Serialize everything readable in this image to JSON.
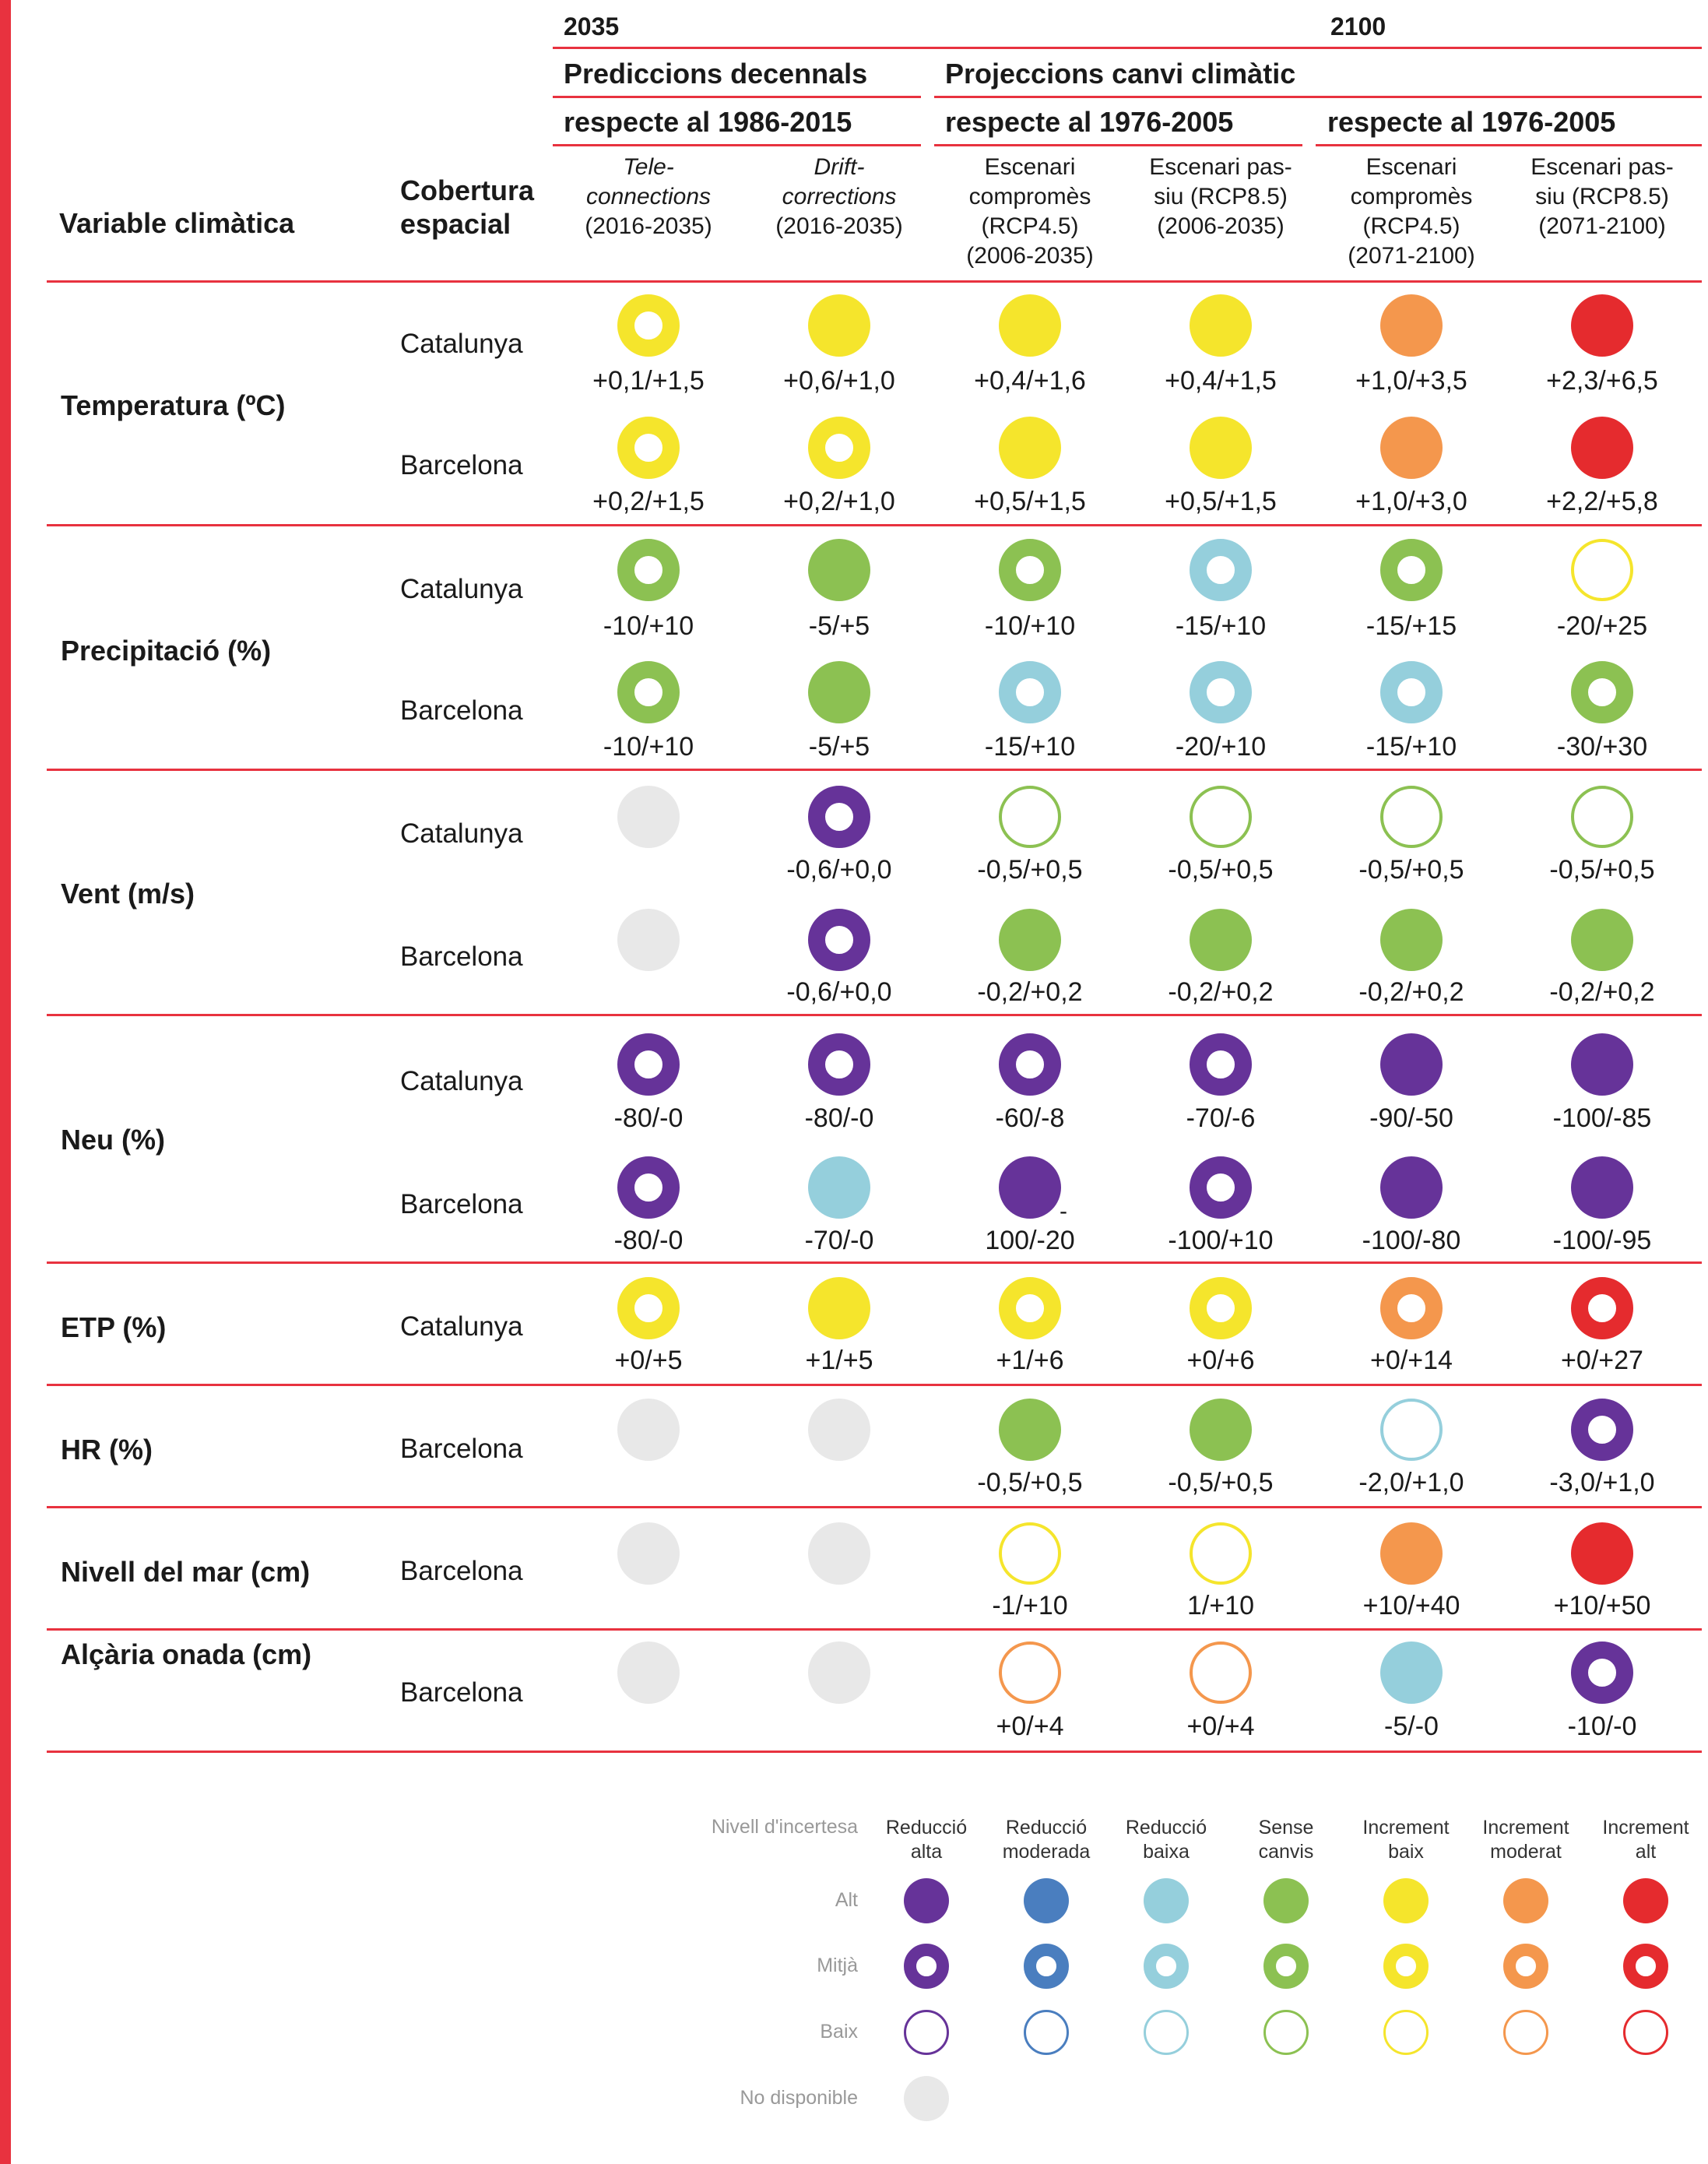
{
  "colors": {
    "accent": "#e8323f",
    "reduccio_alta": "#663399",
    "reduccio_moderada": "#4a7ebf",
    "reduccio_baixa": "#95cfdc",
    "sense_canvis": "#8cc152",
    "increment_baix": "#f5e52c",
    "increment_moderat": "#f4974d",
    "increment_alt": "#e52b2e",
    "no_disponible": "#e8e8e8"
  },
  "header": {
    "year_2035": "2035",
    "year_2100": "2100",
    "group_predictions": "Prediccions decennals",
    "group_projections": "Projeccions canvi climàtic",
    "ref_1986": "respecte al 1986-2015",
    "ref_1976_a": "respecte al 1976-2005",
    "ref_1976_b": "respecte al 1976-2005",
    "var_label": "Variable climàtica",
    "cob_label_1": "Cobertura",
    "cob_label_2": "espacial",
    "columns": [
      {
        "l1": "Tele-",
        "l2": "connections",
        "l3": "(2016-2035)",
        "l4": "",
        "italic": true
      },
      {
        "l1": "Drift-",
        "l2": "corrections",
        "l3": "(2016-2035)",
        "l4": "",
        "italic": true
      },
      {
        "l1": "Escenari",
        "l2": "compromès",
        "l3": "(RCP4.5)",
        "l4": "(2006-2035)",
        "italic": false
      },
      {
        "l1": "Escenari pas-",
        "l2": "siu (RCP8.5)",
        "l3": "(2006-2035)",
        "l4": "",
        "italic": false
      },
      {
        "l1": "Escenari",
        "l2": "compromès",
        "l3": "(RCP4.5)",
        "l4": "(2071-2100)",
        "italic": false
      },
      {
        "l1": "Escenari pas-",
        "l2": "siu (RCP8.5)",
        "l3": "(2071-2100)",
        "l4": "",
        "italic": false
      }
    ]
  },
  "groups": [
    {
      "name": "Temperatura (ºC)",
      "rows": [
        {
          "region": "Catalunya",
          "cells": [
            {
              "c": "Y",
              "l": "M",
              "v": "+0,1/+1,5"
            },
            {
              "c": "Y",
              "l": "A",
              "v": "+0,6/+1,0"
            },
            {
              "c": "Y",
              "l": "A",
              "v": "+0,4/+1,6"
            },
            {
              "c": "Y",
              "l": "A",
              "v": "+0,4/+1,5"
            },
            {
              "c": "O",
              "l": "A",
              "v": "+1,0/+3,5"
            },
            {
              "c": "R",
              "l": "A",
              "v": "+2,3/+6,5"
            }
          ]
        },
        {
          "region": "Barcelona",
          "cells": [
            {
              "c": "Y",
              "l": "M",
              "v": "+0,2/+1,5"
            },
            {
              "c": "Y",
              "l": "M",
              "v": "+0,2/+1,0"
            },
            {
              "c": "Y",
              "l": "A",
              "v": "+0,5/+1,5"
            },
            {
              "c": "Y",
              "l": "A",
              "v": "+0,5/+1,5"
            },
            {
              "c": "O",
              "l": "A",
              "v": "+1,0/+3,0"
            },
            {
              "c": "R",
              "l": "A",
              "v": "+2,2/+5,8"
            }
          ]
        }
      ]
    },
    {
      "name": "Precipitació (%)",
      "rows": [
        {
          "region": "Catalunya",
          "cells": [
            {
              "c": "G",
              "l": "M",
              "v": "-10/+10"
            },
            {
              "c": "G",
              "l": "A",
              "v": "-5/+5"
            },
            {
              "c": "G",
              "l": "M",
              "v": "-10/+10"
            },
            {
              "c": "C",
              "l": "M",
              "v": "-15/+10"
            },
            {
              "c": "G",
              "l": "M",
              "v": "-15/+15"
            },
            {
              "c": "Y",
              "l": "B",
              "v": "-20/+25"
            }
          ]
        },
        {
          "region": "Barcelona",
          "cells": [
            {
              "c": "G",
              "l": "M",
              "v": "-10/+10"
            },
            {
              "c": "G",
              "l": "A",
              "v": "-5/+5"
            },
            {
              "c": "C",
              "l": "M",
              "v": "-15/+10"
            },
            {
              "c": "C",
              "l": "M",
              "v": "-20/+10"
            },
            {
              "c": "C",
              "l": "M",
              "v": "-15/+10"
            },
            {
              "c": "G",
              "l": "M",
              "v": "-30/+30"
            }
          ]
        }
      ]
    },
    {
      "name": "Vent (m/s)",
      "rows": [
        {
          "region": "Catalunya",
          "cells": [
            {
              "c": "N",
              "l": "A",
              "v": ""
            },
            {
              "c": "P",
              "l": "M",
              "v": "-0,6/+0,0"
            },
            {
              "c": "G",
              "l": "B",
              "v": "-0,5/+0,5"
            },
            {
              "c": "G",
              "l": "B",
              "v": "-0,5/+0,5"
            },
            {
              "c": "G",
              "l": "B",
              "v": "-0,5/+0,5"
            },
            {
              "c": "G",
              "l": "B",
              "v": "-0,5/+0,5"
            }
          ]
        },
        {
          "region": "Barcelona",
          "cells": [
            {
              "c": "N",
              "l": "A",
              "v": ""
            },
            {
              "c": "P",
              "l": "M",
              "v": "-0,6/+0,0"
            },
            {
              "c": "G",
              "l": "A",
              "v": "-0,2/+0,2"
            },
            {
              "c": "G",
              "l": "A",
              "v": "-0,2/+0,2"
            },
            {
              "c": "G",
              "l": "A",
              "v": "-0,2/+0,2"
            },
            {
              "c": "G",
              "l": "A",
              "v": "-0,2/+0,2"
            }
          ]
        }
      ]
    },
    {
      "name": "Neu (%)",
      "rows": [
        {
          "region": "Catalunya",
          "cells": [
            {
              "c": "P",
              "l": "M",
              "v": "-80/-0"
            },
            {
              "c": "P",
              "l": "M",
              "v": "-80/-0"
            },
            {
              "c": "P",
              "l": "M",
              "v": "-60/-8"
            },
            {
              "c": "P",
              "l": "M",
              "v": "-70/-6"
            },
            {
              "c": "P",
              "l": "A",
              "v": "-90/-50"
            },
            {
              "c": "P",
              "l": "A",
              "v": "-100/-85"
            }
          ]
        },
        {
          "region": "Barcelona",
          "cells": [
            {
              "c": "P",
              "l": "M",
              "v": "-80/-0"
            },
            {
              "c": "C",
              "l": "A",
              "v": "-70/-0"
            },
            {
              "c": "P",
              "l": "A",
              "v": "100/-20",
              "hyphen": "-"
            },
            {
              "c": "P",
              "l": "M",
              "v": "-100/+10"
            },
            {
              "c": "P",
              "l": "A",
              "v": "-100/-80"
            },
            {
              "c": "P",
              "l": "A",
              "v": "-100/-95"
            }
          ]
        }
      ]
    },
    {
      "name": "ETP (%)",
      "rows": [
        {
          "region": "Catalunya",
          "cells": [
            {
              "c": "Y",
              "l": "M",
              "v": "+0/+5"
            },
            {
              "c": "Y",
              "l": "A",
              "v": "+1/+5"
            },
            {
              "c": "Y",
              "l": "M",
              "v": "+1/+6"
            },
            {
              "c": "Y",
              "l": "M",
              "v": "+0/+6"
            },
            {
              "c": "O",
              "l": "M",
              "v": "+0/+14"
            },
            {
              "c": "R",
              "l": "M",
              "v": "+0/+27"
            }
          ]
        }
      ]
    },
    {
      "name": "HR (%)",
      "rows": [
        {
          "region": "Barcelona",
          "cells": [
            {
              "c": "N",
              "l": "A",
              "v": ""
            },
            {
              "c": "N",
              "l": "A",
              "v": ""
            },
            {
              "c": "G",
              "l": "A",
              "v": "-0,5/+0,5"
            },
            {
              "c": "G",
              "l": "A",
              "v": "-0,5/+0,5"
            },
            {
              "c": "C",
              "l": "B",
              "v": "-2,0/+1,0"
            },
            {
              "c": "P",
              "l": "M",
              "v": "-3,0/+1,0"
            }
          ]
        }
      ]
    },
    {
      "name": "Nivell del mar (cm)",
      "rows": [
        {
          "region": "Barcelona",
          "cells": [
            {
              "c": "N",
              "l": "A",
              "v": ""
            },
            {
              "c": "N",
              "l": "A",
              "v": ""
            },
            {
              "c": "Y",
              "l": "B",
              "v": "-1/+10"
            },
            {
              "c": "Y",
              "l": "B",
              "v": "1/+10"
            },
            {
              "c": "O",
              "l": "A",
              "v": "+10/+40"
            },
            {
              "c": "R",
              "l": "A",
              "v": "+10/+50"
            }
          ]
        }
      ]
    },
    {
      "name": "Alçària onada (cm)",
      "rows": [
        {
          "region": "Barcelona",
          "cells": [
            {
              "c": "N",
              "l": "A",
              "v": ""
            },
            {
              "c": "N",
              "l": "A",
              "v": ""
            },
            {
              "c": "O",
              "l": "B",
              "v": "+0/+4"
            },
            {
              "c": "O",
              "l": "B",
              "v": "+0/+4"
            },
            {
              "c": "C",
              "l": "A",
              "v": "-5/-0"
            },
            {
              "c": "P",
              "l": "M",
              "v": "-10/-0"
            }
          ]
        }
      ]
    }
  ],
  "legend": {
    "title": "Nivell d'incertesa",
    "categories": [
      {
        "l1": "Reducció",
        "l2": "alta",
        "c": "P"
      },
      {
        "l1": "Reducció",
        "l2": "moderada",
        "c": "B"
      },
      {
        "l1": "Reducció",
        "l2": "baixa",
        "c": "C"
      },
      {
        "l1": "Sense",
        "l2": "canvis",
        "c": "G"
      },
      {
        "l1": "Increment",
        "l2": "baix",
        "c": "Y"
      },
      {
        "l1": "Increment",
        "l2": "moderat",
        "c": "O"
      },
      {
        "l1": "Increment",
        "l2": "alt",
        "c": "R"
      }
    ],
    "levels": [
      {
        "label": "Alt",
        "l": "A"
      },
      {
        "label": "Mitjà",
        "l": "M"
      },
      {
        "label": "Baix",
        "l": "B"
      }
    ],
    "no_data_label": "No disponible"
  }
}
